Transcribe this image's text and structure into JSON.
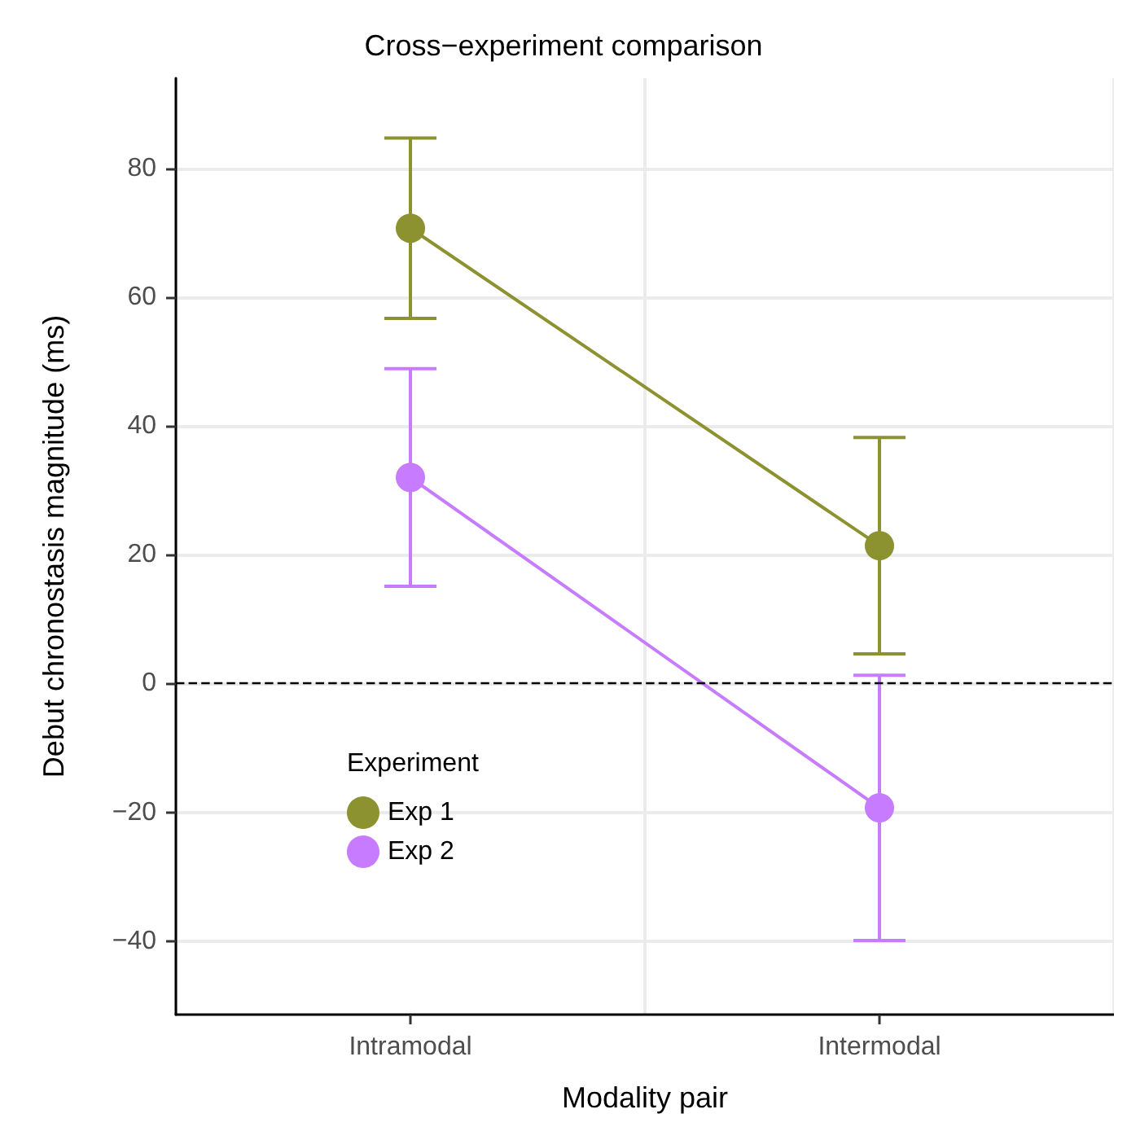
{
  "chart_data": {
    "type": "line",
    "title": "Cross−experiment comparison",
    "xlabel": "Modality pair",
    "ylabel": "Debut chronostasis magnitude (ms)",
    "legend_title": "Experiment",
    "categories": [
      "Intramodal",
      "Intermodal"
    ],
    "series": [
      {
        "name": "Exp 1",
        "color": "#8c9230",
        "values": [
          70.7,
          21.4
        ],
        "errors": [
          14,
          16.8
        ]
      },
      {
        "name": "Exp 2",
        "color": "#c77cff",
        "values": [
          32,
          -19.3
        ],
        "errors": [
          16.9,
          20.6
        ]
      }
    ],
    "ylim": [
      -51.4,
      94
    ],
    "yticks": [
      -40,
      -20,
      0,
      20,
      40,
      60,
      80
    ],
    "grid": true,
    "legend": "bottom left",
    "marker": "circle",
    "line_style": "solid",
    "ref_lines": [
      {
        "axis": "y",
        "value": 0,
        "color": "#000000",
        "line_style": "dashed"
      }
    ]
  }
}
